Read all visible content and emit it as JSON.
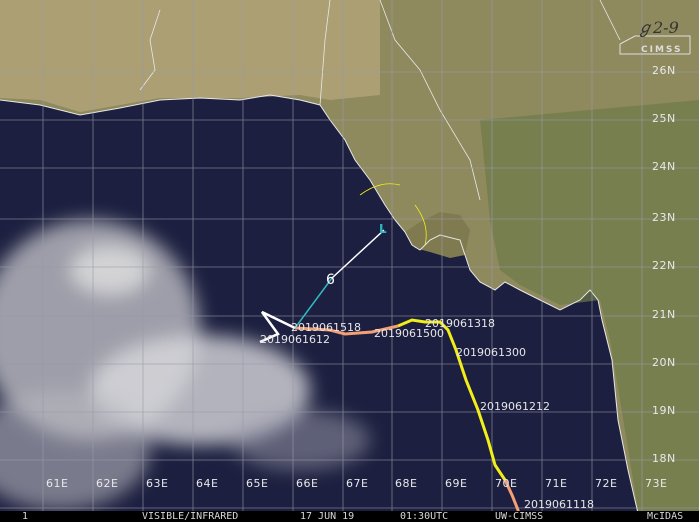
{
  "footer": {
    "frame": "1",
    "channel": "VISIBLE/INFRARED",
    "date": "17 JUN 19",
    "time": "01:30UTC",
    "source": "UW-CIMSS",
    "software": "McIDAS"
  },
  "logo": {
    "text": "CIMSS"
  },
  "longitude_labels": [
    "61E",
    "62E",
    "63E",
    "64E",
    "65E",
    "66E",
    "67E",
    "68E",
    "69E",
    "70E",
    "71E",
    "72E",
    "73E"
  ],
  "latitude_labels": [
    "26N",
    "25N",
    "24N",
    "23N",
    "22N",
    "21N",
    "20N",
    "19N",
    "18N"
  ],
  "track_labels": [
    "2019061518",
    "2019061612",
    "2019061500",
    "2019061318",
    "2019061300",
    "2019061212",
    "2019061118"
  ],
  "colors": {
    "sea": "#1c1f3f",
    "land": "#8c8a5c",
    "grid": "#9a9aa8",
    "track_yellow": "#f2ee1a",
    "track_orange": "#f4a074",
    "track_white": "#ffffff",
    "forecast_cyan": "#2fb8c0"
  }
}
